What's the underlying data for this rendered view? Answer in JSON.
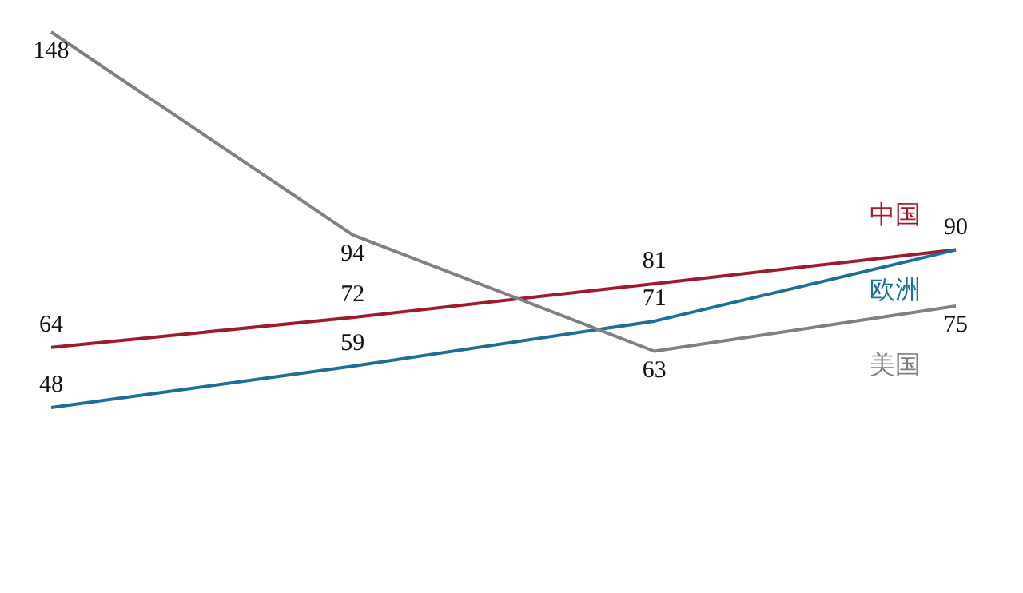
{
  "chart_data": {
    "type": "line",
    "categories": [
      null,
      null,
      null,
      null
    ],
    "series": [
      {
        "name": "中国",
        "color": "#a01a2c",
        "values": [
          64,
          72,
          81,
          90
        ],
        "value_labels": [
          "64",
          "72",
          "81",
          "90"
        ]
      },
      {
        "name": "欧洲",
        "color": "#1b6f98",
        "values": [
          48,
          59,
          71,
          90
        ],
        "value_labels": [
          "48",
          "59",
          "71",
          null
        ]
      },
      {
        "name": "美国",
        "color": "#808080",
        "values": [
          148,
          94,
          63,
          75
        ],
        "value_labels": [
          "148",
          "94",
          "63",
          "75"
        ]
      }
    ],
    "marker": "none",
    "grid": false,
    "legend": false,
    "tick_labels": false
  }
}
